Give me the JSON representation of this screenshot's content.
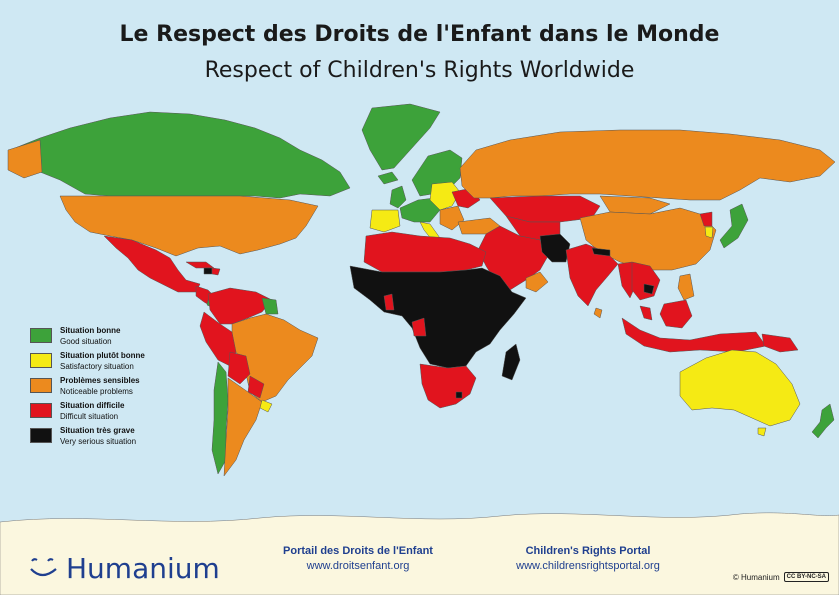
{
  "title_fr": "Le Respect des Droits de l'Enfant dans le Monde",
  "title_en": "Respect of Children's Rights Worldwide",
  "legend": [
    {
      "fr": "Situation bonne",
      "en": "Good situation",
      "color": "#3da23a"
    },
    {
      "fr": "Situation plutôt bonne",
      "en": "Satisfactory situation",
      "color": "#f5ea14"
    },
    {
      "fr": "Problèmes sensibles",
      "en": "Noticeable problems",
      "color": "#ec8a1e"
    },
    {
      "fr": "Situation difficile",
      "en": "Difficult situation",
      "color": "#e1141e"
    },
    {
      "fr": "Situation très grave",
      "en": "Very serious situation",
      "color": "#111111"
    }
  ],
  "colors": {
    "ocean": "#cfe8f3",
    "antarctica": "#fbf7df",
    "good": "#3da23a",
    "satisfactory": "#f5ea14",
    "noticeable": "#ec8a1e",
    "difficult": "#e1141e",
    "very_serious": "#111111",
    "brand": "#1f3f8f"
  },
  "footer": {
    "brand": "Humanium",
    "portal_fr": "Portail des Droits de l'Enfant",
    "url_fr": "www.droitsenfant.org",
    "portal_en": "Children's Rights Portal",
    "url_en": "www.childrensrightsportal.org",
    "copyright": "© Humanium",
    "license": "CC BY-NC-SA"
  }
}
